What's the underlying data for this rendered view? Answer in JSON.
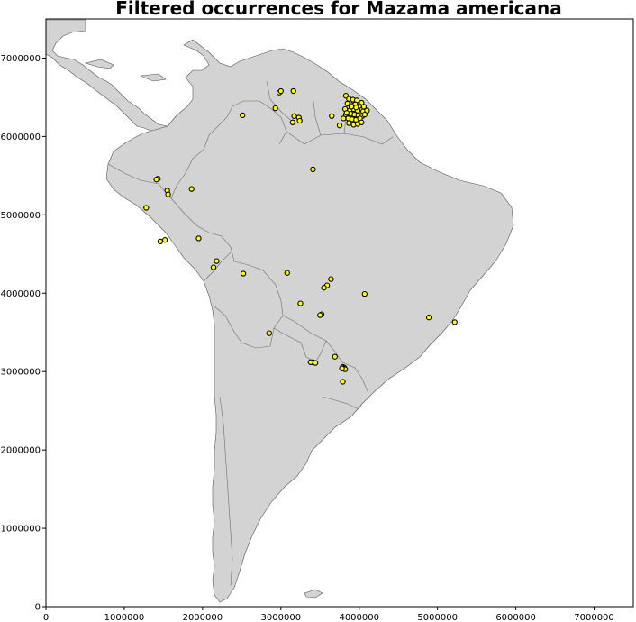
{
  "chart_data": {
    "type": "scatter",
    "title": "Filtered occurrences for Mazama americana",
    "xlim": [
      0,
      7500000
    ],
    "ylim": [
      0,
      7500000
    ],
    "x_ticks": [
      0,
      1000000,
      2000000,
      3000000,
      4000000,
      5000000,
      6000000,
      7000000
    ],
    "y_ticks": [
      0,
      1000000,
      2000000,
      3000000,
      4000000,
      5000000,
      6000000,
      7000000
    ],
    "x_tick_labels": [
      "0",
      "1000000",
      "2000000",
      "3000000",
      "4000000",
      "5000000",
      "6000000",
      "7000000"
    ],
    "y_tick_labels": [
      "0",
      "1000000",
      "2000000",
      "3000000",
      "4000000",
      "5000000",
      "6000000",
      "7000000"
    ],
    "grid": false,
    "basemap": "South America country outlines",
    "colors": {
      "land": "#d3d3d3",
      "border": "#6e6e6e",
      "marker_fill": "#ffff00",
      "marker_edge": "#000000"
    },
    "series": [
      {
        "points": [
          [
            2980000,
            6560000
          ],
          [
            3000000,
            6580000
          ],
          [
            3160000,
            6580000
          ],
          [
            2930000,
            6360000
          ],
          [
            2510000,
            6270000
          ],
          [
            3170000,
            6260000
          ],
          [
            3230000,
            6240000
          ],
          [
            3240000,
            6200000
          ],
          [
            3150000,
            6180000
          ],
          [
            3650000,
            6260000
          ],
          [
            3750000,
            6140000
          ],
          [
            3410000,
            5580000
          ],
          [
            3830000,
            6520000
          ],
          [
            3870000,
            6480000
          ],
          [
            3920000,
            6470000
          ],
          [
            3970000,
            6460000
          ],
          [
            4030000,
            6430000
          ],
          [
            3850000,
            6420000
          ],
          [
            3900000,
            6400000
          ],
          [
            3950000,
            6410000
          ],
          [
            4000000,
            6390000
          ],
          [
            4060000,
            6380000
          ],
          [
            3820000,
            6350000
          ],
          [
            3880000,
            6330000
          ],
          [
            3930000,
            6350000
          ],
          [
            3980000,
            6330000
          ],
          [
            4050000,
            6320000
          ],
          [
            4100000,
            6330000
          ],
          [
            3830000,
            6280000
          ],
          [
            3890000,
            6290000
          ],
          [
            3940000,
            6280000
          ],
          [
            3990000,
            6270000
          ],
          [
            4040000,
            6260000
          ],
          [
            3800000,
            6230000
          ],
          [
            3860000,
            6230000
          ],
          [
            3910000,
            6220000
          ],
          [
            3960000,
            6210000
          ],
          [
            4010000,
            6230000
          ],
          [
            3870000,
            6170000
          ],
          [
            3930000,
            6150000
          ],
          [
            3980000,
            6160000
          ],
          [
            4030000,
            6180000
          ],
          [
            3900000,
            6380000
          ],
          [
            3960000,
            6370000
          ],
          [
            3840000,
            6300000
          ],
          [
            4070000,
            6280000
          ],
          [
            1430000,
            5460000
          ],
          [
            1410000,
            5450000
          ],
          [
            1860000,
            5330000
          ],
          [
            1550000,
            5310000
          ],
          [
            1560000,
            5260000
          ],
          [
            1280000,
            5090000
          ],
          [
            1520000,
            4680000
          ],
          [
            1460000,
            4660000
          ],
          [
            1950000,
            4700000
          ],
          [
            2180000,
            4410000
          ],
          [
            2140000,
            4330000
          ],
          [
            2520000,
            4250000
          ],
          [
            3080000,
            4260000
          ],
          [
            3640000,
            4180000
          ],
          [
            3590000,
            4100000
          ],
          [
            3550000,
            4070000
          ],
          [
            4070000,
            3990000
          ],
          [
            3250000,
            3870000
          ],
          [
            3520000,
            3730000
          ],
          [
            3500000,
            3720000
          ],
          [
            4890000,
            3690000
          ],
          [
            5220000,
            3630000
          ],
          [
            2850000,
            3490000
          ],
          [
            3690000,
            3190000
          ],
          [
            3410000,
            3120000
          ],
          [
            3440000,
            3110000
          ],
          [
            3380000,
            3120000
          ],
          [
            3790000,
            3060000
          ],
          [
            3810000,
            3050000
          ],
          [
            3800000,
            3040000
          ],
          [
            3820000,
            3030000
          ],
          [
            3780000,
            3040000
          ],
          [
            3790000,
            2870000
          ]
        ]
      }
    ]
  }
}
